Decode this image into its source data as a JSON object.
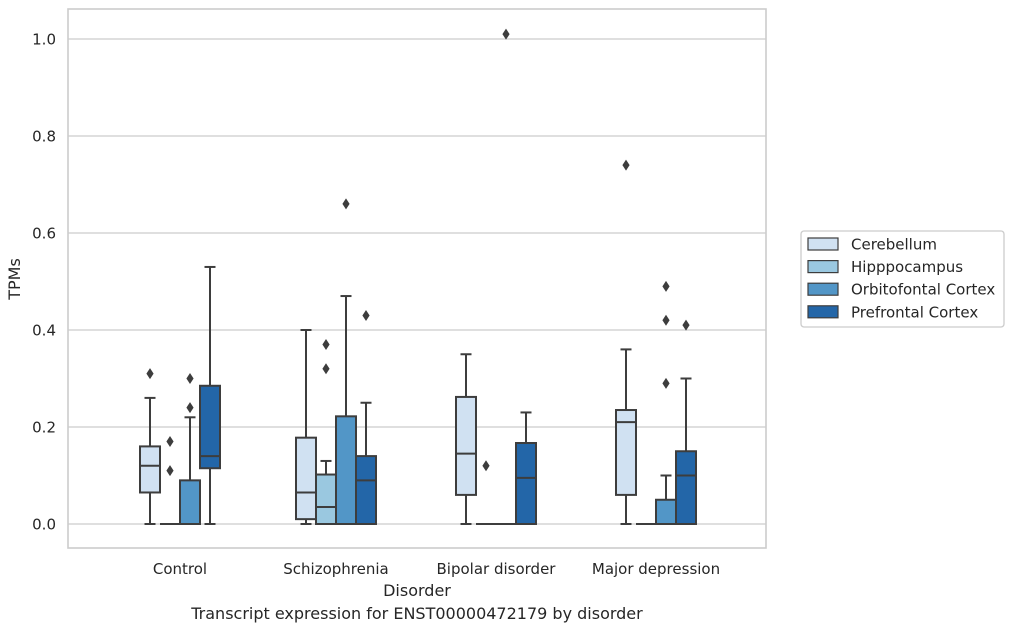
{
  "caption": "Transcript expression for ENST00000472179 by disorder",
  "chart_data": {
    "type": "boxplot",
    "xlabel": "Disorder",
    "ylabel": "TPMs",
    "ylim": [
      -0.05,
      1.06
    ],
    "yticks": [
      0.0,
      0.2,
      0.4,
      0.6,
      0.8,
      1.0
    ],
    "ytick_labels": [
      "0.0",
      "0.2",
      "0.4",
      "0.6",
      "0.8",
      "1.0"
    ],
    "grid": true,
    "legend_position": "right",
    "categories": [
      "Control",
      "Schizophrenia",
      "Bipolar disorder",
      "Major depression"
    ],
    "series": [
      {
        "name": "Cerebellum",
        "color": "#d0e1f2",
        "boxes": [
          {
            "whislo": 0.0,
            "q1": 0.065,
            "med": 0.12,
            "q3": 0.16,
            "whishi": 0.26,
            "fliers": [
              0.31
            ]
          },
          {
            "whislo": 0.0,
            "q1": 0.01,
            "med": 0.065,
            "q3": 0.178,
            "whishi": 0.4,
            "fliers": []
          },
          {
            "whislo": 0.0,
            "q1": 0.06,
            "med": 0.145,
            "q3": 0.262,
            "whishi": 0.35,
            "fliers": []
          },
          {
            "whislo": 0.0,
            "q1": 0.06,
            "med": 0.21,
            "q3": 0.235,
            "whishi": 0.36,
            "fliers": [
              0.74
            ]
          }
        ]
      },
      {
        "name": "Hipppocampus",
        "color": "#9ac8e0",
        "boxes": [
          {
            "whislo": 0.0,
            "q1": 0.0,
            "med": 0.0,
            "q3": 0.0,
            "whishi": 0.0,
            "fliers": [
              0.11,
              0.17
            ]
          },
          {
            "whislo": 0.0,
            "q1": 0.0,
            "med": 0.035,
            "q3": 0.102,
            "whishi": 0.13,
            "fliers": [
              0.32,
              0.37
            ]
          },
          {
            "whislo": 0.0,
            "q1": 0.0,
            "med": 0.0,
            "q3": 0.0,
            "whishi": 0.0,
            "fliers": [
              0.12
            ]
          },
          {
            "whislo": 0.0,
            "q1": 0.0,
            "med": 0.0,
            "q3": 0.0,
            "whishi": 0.0,
            "fliers": []
          }
        ]
      },
      {
        "name": "Orbitofontal Cortex",
        "color": "#5296c7",
        "boxes": [
          {
            "whislo": 0.0,
            "q1": 0.0,
            "med": 0.0,
            "q3": 0.09,
            "whishi": 0.22,
            "fliers": [
              0.24,
              0.3
            ]
          },
          {
            "whislo": 0.0,
            "q1": 0.0,
            "med": 0.0,
            "q3": 0.222,
            "whishi": 0.47,
            "fliers": [
              0.66
            ]
          },
          {
            "whislo": 0.0,
            "q1": 0.0,
            "med": 0.0,
            "q3": 0.0,
            "whishi": 0.0,
            "fliers": [
              1.01
            ]
          },
          {
            "whislo": 0.0,
            "q1": 0.0,
            "med": 0.0,
            "q3": 0.05,
            "whishi": 0.1,
            "fliers": [
              0.29,
              0.42,
              0.49
            ]
          }
        ]
      },
      {
        "name": "Prefrontal Cortex",
        "color": "#2366a8",
        "boxes": [
          {
            "whislo": 0.0,
            "q1": 0.115,
            "med": 0.14,
            "q3": 0.285,
            "whishi": 0.53,
            "fliers": []
          },
          {
            "whislo": 0.0,
            "q1": 0.0,
            "med": 0.09,
            "q3": 0.14,
            "whishi": 0.25,
            "fliers": [
              0.43
            ]
          },
          {
            "whislo": 0.0,
            "q1": 0.0,
            "med": 0.095,
            "q3": 0.167,
            "whishi": 0.23,
            "fliers": []
          },
          {
            "whislo": 0.0,
            "q1": 0.0,
            "med": 0.1,
            "q3": 0.15,
            "whishi": 0.3,
            "fliers": [
              0.41
            ]
          }
        ]
      }
    ]
  }
}
